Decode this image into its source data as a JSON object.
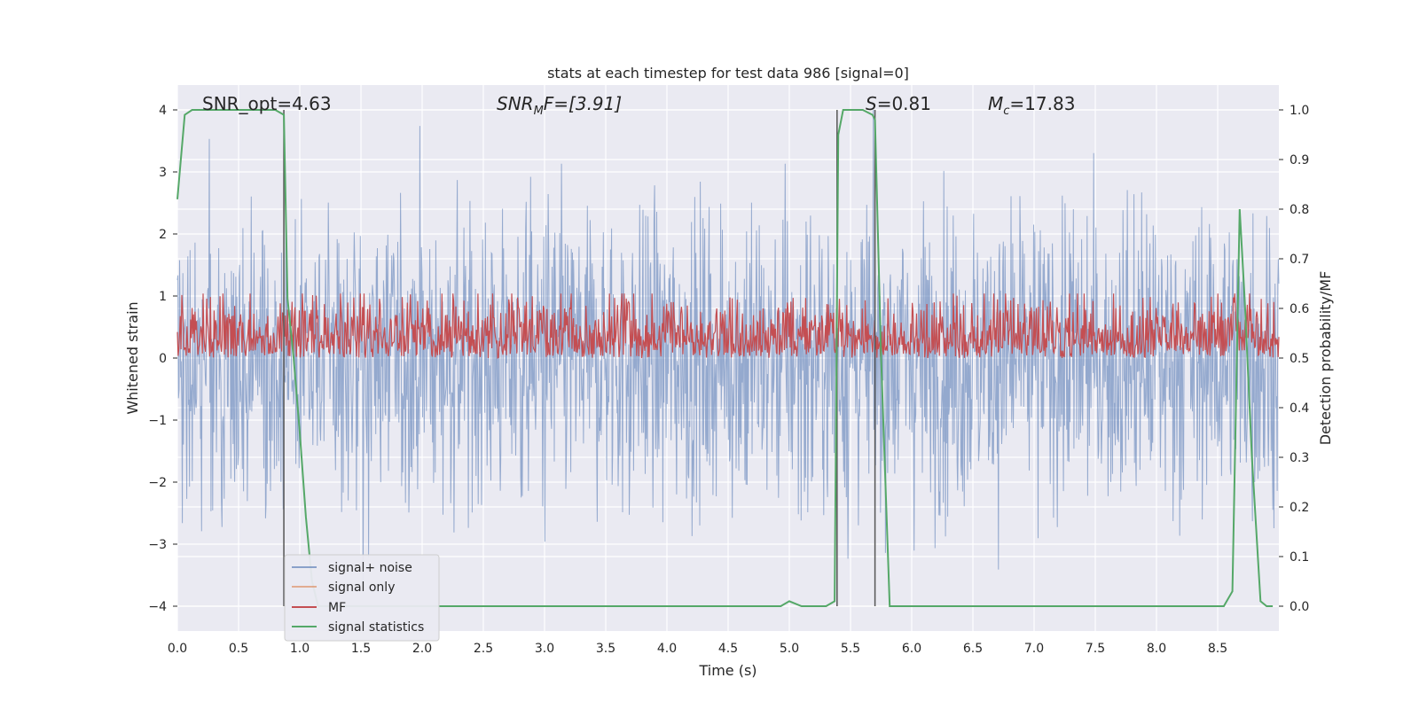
{
  "chart_data": {
    "type": "line",
    "title": "stats at each timestep for test data 986 [signal=0]",
    "xlabel": "Time (s)",
    "ylabel_left": "Whitened strain",
    "ylabel_right": "Detection probability/MF",
    "xlim": [
      0.0,
      9.0
    ],
    "ylim_left": [
      -4.4,
      4.4
    ],
    "ylim_right": [
      -0.05,
      1.05
    ],
    "x_ticks": [
      "0.0",
      "0.5",
      "1.0",
      "1.5",
      "2.0",
      "2.5",
      "3.0",
      "3.5",
      "4.0",
      "4.5",
      "5.0",
      "5.5",
      "6.0",
      "6.5",
      "7.0",
      "7.5",
      "8.0",
      "8.5"
    ],
    "y_ticks_left": [
      "−4",
      "−3",
      "−2",
      "−1",
      "0",
      "1",
      "2",
      "3",
      "4"
    ],
    "y_ticks_right": [
      "0.0",
      "0.1",
      "0.2",
      "0.3",
      "0.4",
      "0.5",
      "0.6",
      "0.7",
      "0.8",
      "0.9",
      "1.0"
    ],
    "grid": true,
    "legend_position": "lower-left",
    "annotations": {
      "snr_opt": "SNR_opt=4.63",
      "snr_mf_main": "SNR",
      "snr_mf_sub": "M",
      "snr_mf_tail": "F=[3.91]",
      "s_italic": "S",
      "s_tail": "=0.81",
      "mc_main": "M",
      "mc_sub": "c",
      "mc_tail": "=17.83"
    },
    "markers_x": [
      0.87,
      5.39,
      5.7
    ],
    "series": [
      {
        "name": "signal+ noise",
        "color": "#4c72b0",
        "axis": "left",
        "style": "noise",
        "amplitude": 1.2,
        "peak_max": 4.0,
        "peak_min": -4.0
      },
      {
        "name": "signal only",
        "color": "#dd8452",
        "axis": "left",
        "style": "flat",
        "values": []
      },
      {
        "name": "MF",
        "color": "#c44e52",
        "axis": "right",
        "style": "noise",
        "baseline": 0.5,
        "min": 0.5,
        "max": 0.63
      },
      {
        "name": "signal statistics",
        "color": "#55a868",
        "axis": "right",
        "style": "line",
        "x": [
          0.0,
          0.06,
          0.12,
          0.2,
          0.4,
          0.6,
          0.8,
          0.87,
          0.9,
          0.95,
          1.0,
          1.05,
          1.1,
          1.15,
          1.2,
          1.5,
          2.0,
          3.0,
          4.0,
          4.93,
          5.0,
          5.1,
          5.3,
          5.37,
          5.4,
          5.44,
          5.5,
          5.6,
          5.68,
          5.7,
          5.75,
          5.82,
          5.88,
          6.0,
          7.0,
          8.0,
          8.55,
          8.62,
          8.68,
          8.72,
          8.78,
          8.85,
          8.9,
          8.95
        ],
        "y": [
          0.82,
          0.99,
          1.0,
          1.0,
          1.0,
          1.0,
          1.0,
          0.99,
          0.62,
          0.5,
          0.35,
          0.18,
          0.05,
          0.0,
          0.0,
          0.0,
          0.0,
          0.0,
          0.0,
          0.0,
          0.01,
          0.0,
          0.0,
          0.01,
          0.95,
          1.0,
          1.0,
          1.0,
          0.99,
          0.98,
          0.5,
          0.0,
          0.0,
          0.0,
          0.0,
          0.0,
          0.0,
          0.03,
          0.8,
          0.62,
          0.3,
          0.01,
          0.0,
          0.0
        ]
      }
    ]
  }
}
